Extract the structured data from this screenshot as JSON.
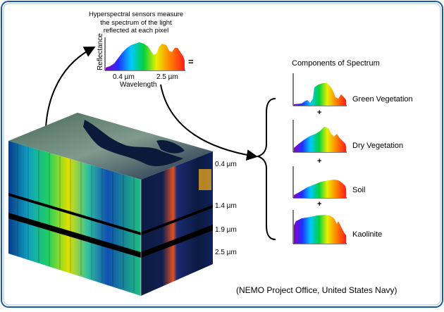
{
  "intro_text": "Hyperspectral sensors measure\nthe spectrum of the light\nreflected at each pixel",
  "axis": {
    "y_label": "Reflectance",
    "x_label": "Wavelength",
    "x_min": "0.4 µm",
    "x_max": "2.5 µm"
  },
  "equals_sign": "=",
  "components": {
    "title": "Components of Spectrum",
    "items": [
      {
        "label": "Green Vegetation"
      },
      {
        "label": "Dry Vegetation"
      },
      {
        "label": "Soil"
      },
      {
        "label": "Kaolinite"
      }
    ],
    "plus": "+"
  },
  "cube_bands": [
    "0.4 µm",
    "1.4 µm",
    "1.9 µm",
    "2.5 µm"
  ],
  "credit": "(NEMO Project Office, United States Navy)",
  "colors": {
    "frame_border": "#1a5aa0",
    "water": "#0b1a3a",
    "land": "#6a7f78",
    "spectrum_red": "#ff1a1a",
    "spectrum_violet": "#8a00c8"
  }
}
